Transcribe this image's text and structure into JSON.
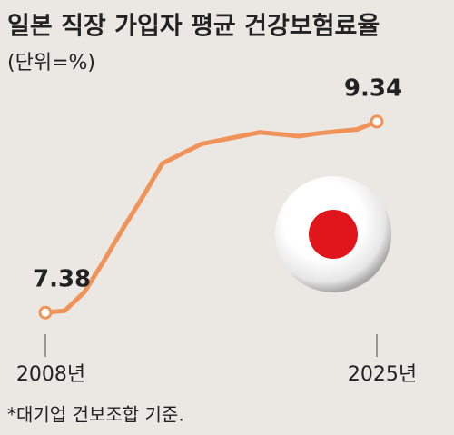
{
  "chart_data": {
    "type": "line",
    "title": "일본 직장 가입자 평균 건강보험료율",
    "subtitle": "(단위=%)",
    "note": "*대기업 건보조합 기준.",
    "categories": [
      "2008년",
      null,
      null,
      null,
      null,
      null,
      null,
      null,
      null,
      null,
      null,
      null,
      null,
      null,
      null,
      null,
      null,
      "2025년"
    ],
    "series": [
      {
        "color": "#f0935a",
        "values": [
          7.38,
          7.4,
          7.59,
          7.91,
          8.25,
          8.57,
          8.91,
          9.01,
          9.11,
          9.15,
          9.19,
          9.23,
          9.21,
          9.19,
          9.22,
          9.24,
          9.26,
          9.34
        ]
      }
    ],
    "ylim": [
      7.0,
      9.6
    ]
  }
}
